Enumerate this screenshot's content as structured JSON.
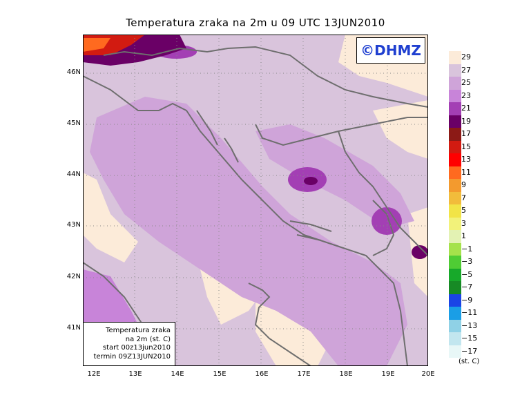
{
  "title": "Temperatura zraka na 2m u 09 UTC 13JUN2010",
  "logo": "©DHMZ",
  "info": {
    "line1": "Temperatura zraka",
    "line2": "na 2m (st. C)",
    "line3": "start 00z13jun2010",
    "line4": "termin 09Z13JUN2010"
  },
  "lat_labels": [
    "46N",
    "45N",
    "44N",
    "43N",
    "42N",
    "41N"
  ],
  "lon_labels": [
    "12E",
    "13E",
    "14E",
    "15E",
    "16E",
    "17E",
    "18E",
    "19E",
    "20E"
  ],
  "legend": {
    "labels": [
      "29",
      "27",
      "25",
      "23",
      "21",
      "19",
      "17",
      "15",
      "13",
      "11",
      "9",
      "7",
      "5",
      "3",
      "1",
      "−1",
      "−3",
      "−5",
      "−7",
      "−9",
      "−11",
      "−13",
      "−15",
      "−17"
    ],
    "colors": [
      "#fcebd9",
      "#d9c4dc",
      "#cfa4d9",
      "#c884d9",
      "#a33fb4",
      "#6a0066",
      "#8c1a16",
      "#d21b11",
      "#ff0000",
      "#ff6a1f",
      "#f39a2e",
      "#f2bc3b",
      "#f2e447",
      "#f2f27a",
      "#e3f2b3",
      "#a5e24b",
      "#4fcc34",
      "#17a92a",
      "#178a25",
      "#1a44e6",
      "#1a9ee6",
      "#8fd1e6",
      "#c2e6ef",
      "#e8f7f7"
    ],
    "unit": "(st. C)"
  }
}
